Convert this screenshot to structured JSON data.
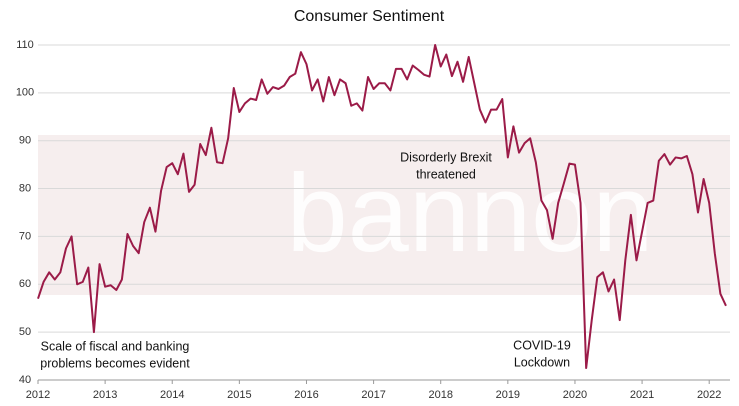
{
  "chart_data": {
    "type": "line",
    "title": "Consumer Sentiment",
    "watermark": "bannon",
    "x": [
      2012,
      2012.083,
      2012.167,
      2012.25,
      2012.333,
      2012.417,
      2012.5,
      2012.583,
      2012.667,
      2012.75,
      2012.833,
      2012.917,
      2013,
      2013.083,
      2013.167,
      2013.25,
      2013.333,
      2013.417,
      2013.5,
      2013.583,
      2013.667,
      2013.75,
      2013.833,
      2013.917,
      2014,
      2014.083,
      2014.167,
      2014.25,
      2014.333,
      2014.417,
      2014.5,
      2014.583,
      2014.667,
      2014.75,
      2014.833,
      2014.917,
      2015,
      2015.083,
      2015.167,
      2015.25,
      2015.333,
      2015.417,
      2015.5,
      2015.583,
      2015.667,
      2015.75,
      2015.833,
      2015.917,
      2016,
      2016.083,
      2016.167,
      2016.25,
      2016.333,
      2016.417,
      2016.5,
      2016.583,
      2016.667,
      2016.75,
      2016.833,
      2016.917,
      2017,
      2017.083,
      2017.167,
      2017.25,
      2017.333,
      2017.417,
      2017.5,
      2017.583,
      2017.667,
      2017.75,
      2017.833,
      2017.917,
      2018,
      2018.083,
      2018.167,
      2018.25,
      2018.333,
      2018.417,
      2018.5,
      2018.583,
      2018.667,
      2018.75,
      2018.833,
      2018.917,
      2019,
      2019.083,
      2019.167,
      2019.25,
      2019.333,
      2019.417,
      2019.5,
      2019.583,
      2019.667,
      2019.75,
      2019.833,
      2019.917,
      2020,
      2020.083,
      2020.167,
      2020.25,
      2020.333,
      2020.417,
      2020.5,
      2020.583,
      2020.667,
      2020.75,
      2020.833,
      2020.917,
      2021,
      2021.083,
      2021.167,
      2021.25,
      2021.333,
      2021.417,
      2021.5,
      2021.583,
      2021.667,
      2021.75,
      2021.833,
      2021.917,
      2022,
      2022.083,
      2022.167,
      2022.25
    ],
    "series": [
      {
        "name": "Consumer Sentiment",
        "color": "#9b1b48",
        "values": [
          57,
          60.5,
          62.5,
          61,
          62.5,
          67.5,
          70,
          60,
          60.5,
          63.5,
          50,
          64.2,
          59.5,
          59.8,
          58.8,
          61,
          70.5,
          68,
          66.5,
          73,
          76,
          71,
          79.5,
          84.5,
          85.3,
          83,
          87.3,
          79.3,
          80.8,
          89.3,
          87,
          92.7,
          85.5,
          85.3,
          90.5,
          101,
          96,
          97.8,
          98.8,
          98.5,
          102.8,
          99.8,
          101.2,
          100.8,
          101.5,
          103.3,
          104,
          108.5,
          106,
          100.5,
          102.8,
          98.2,
          103.3,
          99.5,
          102.8,
          102,
          97.3,
          97.8,
          96.3,
          103.3,
          100.8,
          102,
          102,
          100.5,
          105,
          105,
          102.8,
          105.7,
          104.8,
          103.8,
          103.4,
          110,
          105.5,
          108,
          103.5,
          106.5,
          102.3,
          107.5,
          102,
          96.5,
          93.8,
          96.5,
          96.5,
          98.7,
          86.5,
          93,
          87.5,
          89.5,
          90.5,
          85.5,
          77.5,
          75.5,
          69.5,
          77,
          81,
          85.2,
          85,
          77,
          42.5,
          52.5,
          61.5,
          62.5,
          58.5,
          61,
          52.5,
          65,
          74.5,
          65,
          71,
          77,
          77.5,
          85.8,
          87.2,
          85,
          86.5,
          86.3,
          86.8,
          83,
          75,
          82,
          77,
          66.5,
          58,
          55.5
        ]
      }
    ],
    "xlim": [
      2012,
      2022.31
    ],
    "xticks": [
      2012,
      2013,
      2014,
      2015,
      2016,
      2017,
      2018,
      2019,
      2020,
      2021,
      2022
    ],
    "ylim": [
      40,
      112
    ],
    "yticks": [
      40,
      50,
      60,
      70,
      80,
      90,
      100,
      110
    ],
    "grid": true,
    "annotations": [
      {
        "lines": [
          "Scale of fiscal and banking",
          "problems becomes evident"
        ]
      },
      {
        "lines": [
          "Disorderly Brexit",
          "threatened"
        ]
      },
      {
        "lines": [
          "COVID-19",
          "Lockdown"
        ]
      }
    ]
  }
}
